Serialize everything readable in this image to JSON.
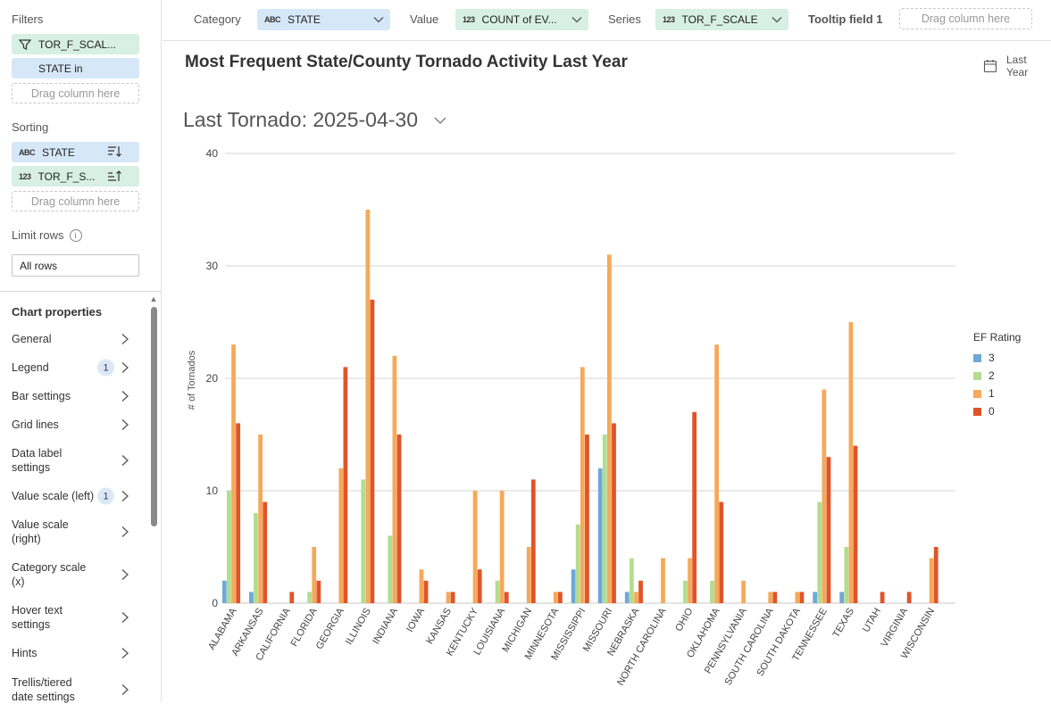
{
  "left_panel": {
    "filters": {
      "title": "Filters",
      "items": [
        "TOR_F_SCAL...",
        "STATE in"
      ],
      "drop_hint": "Drag column here"
    },
    "sorting": {
      "title": "Sorting",
      "items": [
        {
          "type": "ABC",
          "label": "STATE",
          "sort_icon": "sort-descending-icon"
        },
        {
          "type": "123",
          "label": "TOR_F_S...",
          "sort_icon": "sort-ascending-icon"
        }
      ],
      "drop_hint": "Drag column here"
    },
    "limit_rows": {
      "title": "Limit rows",
      "value": "All rows"
    },
    "chart_properties": {
      "title": "Chart properties",
      "items": [
        {
          "label": "General",
          "badge": null
        },
        {
          "label": "Legend",
          "badge": "1"
        },
        {
          "label": "Bar settings",
          "badge": null
        },
        {
          "label": "Grid lines",
          "badge": null
        },
        {
          "label": "Data label settings",
          "badge": null
        },
        {
          "label": "Value scale (left)",
          "badge": "1"
        },
        {
          "label": "Value scale (right)",
          "badge": null
        },
        {
          "label": "Category scale (x)",
          "badge": null
        },
        {
          "label": "Hover text settings",
          "badge": null
        },
        {
          "label": "Hints",
          "badge": null
        },
        {
          "label": "Trellis/tiered date settings",
          "badge": null
        }
      ]
    }
  },
  "topbar": {
    "category_label": "Category",
    "category_value": "STATE",
    "category_type": "ABC",
    "value_label": "Value",
    "value_value": "COUNT of EV...",
    "value_type": "123",
    "series_label": "Series",
    "series_value": "TOR_F_SCALE",
    "series_type": "123",
    "tooltip_label": "Tooltip field 1",
    "tooltip_hint": "Drag column here"
  },
  "chart_header": {
    "title": "Most Frequent State/County Tornado Activity Last Year",
    "date_range": "Last Year",
    "subtitle": "Last Tornado: 2025-04-30"
  },
  "colors": {
    "ef3": "#6fa8d6",
    "ef2": "#b3dd8e",
    "ef1": "#f5a95a",
    "ef0": "#e0542a"
  },
  "chart_data": {
    "type": "bar",
    "title": "Most Frequent State/County Tornado Activity Last Year",
    "ylabel": "# of Tornados",
    "xlabel": "",
    "ylim": [
      0,
      40
    ],
    "yticks": [
      0,
      10,
      20,
      30,
      40
    ],
    "grid": true,
    "legend_title": "EF Rating",
    "legend_placement": "right",
    "categories": [
      "ALABAMA",
      "ARKANSAS",
      "CALIFORNIA",
      "FLORIDA",
      "GEORGIA",
      "ILLINOIS",
      "INDIANA",
      "IOWA",
      "KANSAS",
      "KENTUCKY",
      "LOUISIANA",
      "MICHIGAN",
      "MINNESOTA",
      "MISSISSIPPI",
      "MISSOURI",
      "NEBRASKA",
      "NORTH CAROLINA",
      "OHIO",
      "OKLAHOMA",
      "PENNSYLVANIA",
      "SOUTH CAROLINA",
      "SOUTH DAKOTA",
      "TENNESSEE",
      "TEXAS",
      "UTAH",
      "VIRGINIA",
      "WISCONSIN"
    ],
    "series": [
      {
        "name": "3",
        "color": "#6fa8d6",
        "values": [
          2,
          1,
          0,
          0,
          0,
          0,
          0,
          0,
          0,
          0,
          0,
          0,
          0,
          3,
          12,
          1,
          0,
          0,
          0,
          0,
          0,
          0,
          1,
          1,
          0,
          0,
          0
        ]
      },
      {
        "name": "2",
        "color": "#b3dd8e",
        "values": [
          10,
          8,
          0,
          1,
          0,
          11,
          6,
          0,
          0,
          0,
          2,
          0,
          0,
          7,
          15,
          4,
          0,
          2,
          2,
          0,
          0,
          0,
          9,
          5,
          0,
          0,
          0
        ]
      },
      {
        "name": "1",
        "color": "#f5a95a",
        "values": [
          23,
          15,
          0,
          5,
          12,
          35,
          22,
          3,
          1,
          10,
          10,
          5,
          1,
          21,
          31,
          1,
          4,
          4,
          23,
          2,
          1,
          1,
          19,
          25,
          0,
          0,
          4
        ]
      },
      {
        "name": "0",
        "color": "#e0542a",
        "values": [
          16,
          9,
          1,
          2,
          21,
          27,
          15,
          2,
          1,
          3,
          1,
          11,
          1,
          15,
          16,
          2,
          0,
          17,
          9,
          0,
          1,
          1,
          13,
          14,
          1,
          1,
          5
        ]
      }
    ]
  }
}
